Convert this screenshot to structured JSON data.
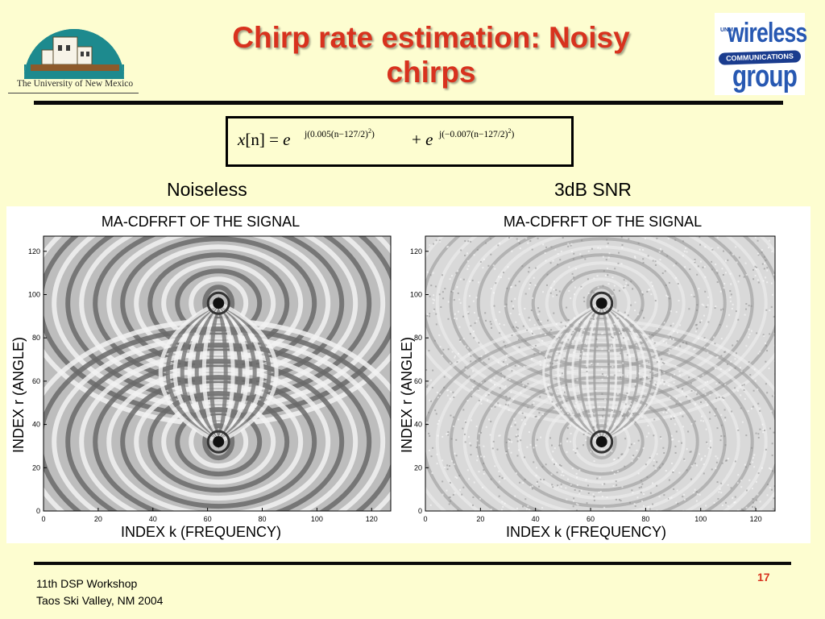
{
  "header": {
    "title_line1": "Chirp rate estimation: Noisy",
    "title_line2": "chirps",
    "unm_logo_text": "The University of New Mexico",
    "wireless_logo": {
      "unm": "UNM",
      "wireless": "wireless",
      "communications": "COMMUNICATIONS",
      "group": "group"
    }
  },
  "equation": {
    "lhs_var": "x",
    "lhs_index": "[n]",
    "equals": "=",
    "base1": "e",
    "exp1": "j(0.005(n−127/2)",
    "exp1_power": "2",
    "exp1_close": ")",
    "plus": "+",
    "base2": "e",
    "exp2": "j(−0.007(n−127/2)",
    "exp2_power": "2",
    "exp2_close": ")"
  },
  "panels": {
    "left_label": "Noiseless",
    "right_label": "3dB SNR"
  },
  "chart_data": [
    {
      "type": "heatmap",
      "title": "MA-CDFRFT OF THE SIGNAL",
      "xlabel": "INDEX k (FREQUENCY)",
      "ylabel": "INDEX r (ANGLE)",
      "xlim": [
        0,
        127
      ],
      "ylim": [
        0,
        127
      ],
      "xticks": [
        0,
        20,
        40,
        60,
        80,
        100,
        120
      ],
      "yticks": [
        0,
        20,
        40,
        60,
        80,
        100,
        120
      ],
      "noise": false,
      "peaks": [
        {
          "x": 64,
          "y": 96
        },
        {
          "x": 64,
          "y": 32
        }
      ]
    },
    {
      "type": "heatmap",
      "title": "MA-CDFRFT OF THE SIGNAL",
      "xlabel": "INDEX k (FREQUENCY)",
      "ylabel": "INDEX r (ANGLE)",
      "xlim": [
        0,
        127
      ],
      "ylim": [
        0,
        127
      ],
      "xticks": [
        0,
        20,
        40,
        60,
        80,
        100,
        120
      ],
      "yticks": [
        0,
        20,
        40,
        60,
        80,
        100,
        120
      ],
      "noise": true,
      "peaks": [
        {
          "x": 64,
          "y": 96
        },
        {
          "x": 64,
          "y": 32
        }
      ]
    }
  ],
  "footer": {
    "line1": "11th DSP Workshop",
    "line2": "Taos Ski Valley, NM 2004",
    "page_number": "17"
  },
  "colors": {
    "background": "#fdfdd0",
    "title": "#d8321e",
    "rule": "#0a0a0a",
    "logo_blue": "#2758b2",
    "logo_teal": "#1d8a8e"
  }
}
